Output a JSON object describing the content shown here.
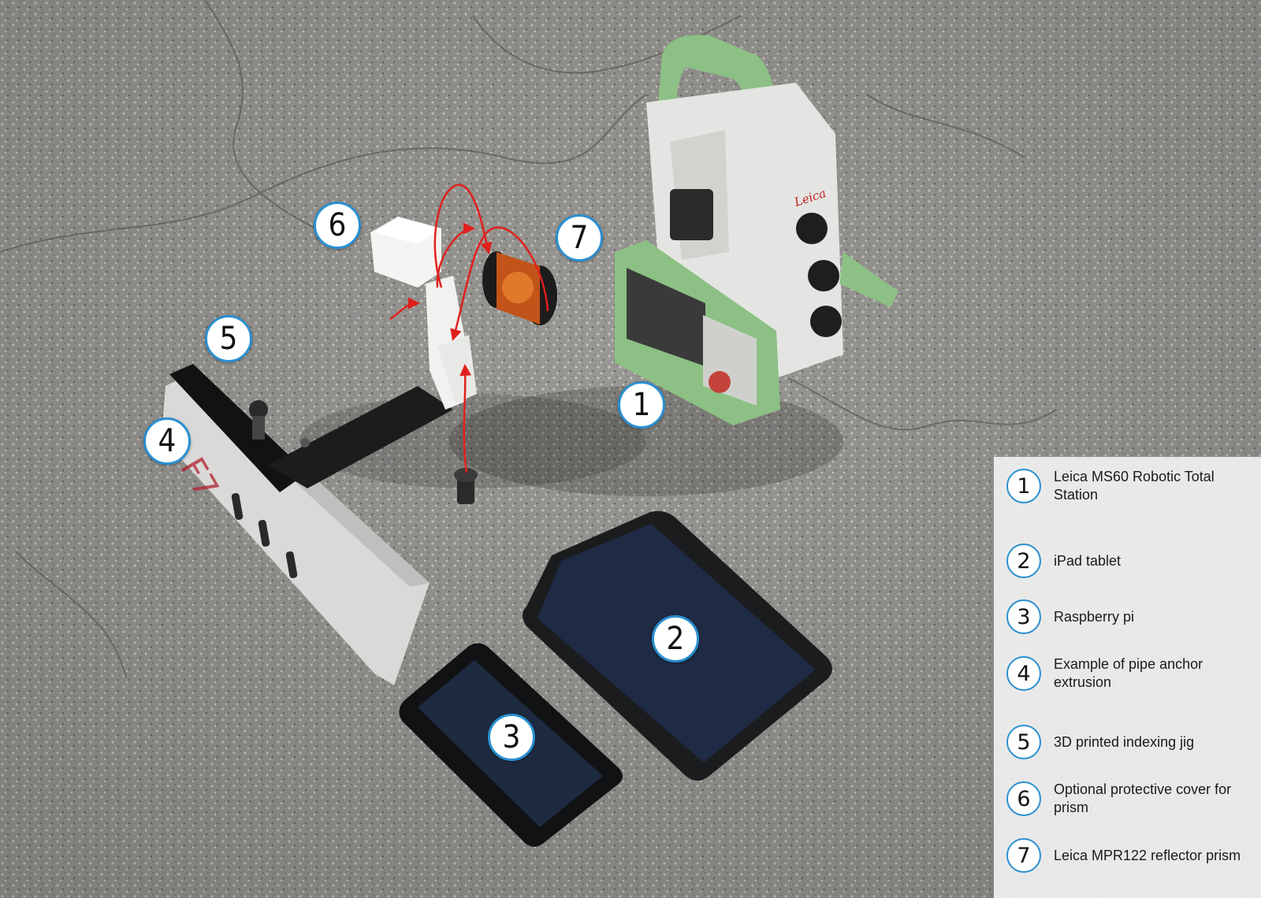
{
  "callouts": [
    "1",
    "2",
    "3",
    "4",
    "5",
    "6",
    "7"
  ],
  "legend": [
    {
      "number": "1",
      "text": "Leica MS60 Robotic Total Station"
    },
    {
      "number": "2",
      "text": "iPad tablet"
    },
    {
      "number": "3",
      "text": "Raspberry pi"
    },
    {
      "number": "4",
      "text": "Example of pipe anchor extrusion"
    },
    {
      "number": "5",
      "text": "3D printed indexing jig"
    },
    {
      "number": "6",
      "text": "Optional protective cover for prism"
    },
    {
      "number": "7",
      "text": "Leica MPR122 reflector prism"
    }
  ],
  "marking_text": "F7",
  "brand_logo": "Leica",
  "colors": {
    "callout_border": "#2a8fd0",
    "arrow": "#e0201c",
    "station_green": "#8cc084",
    "asphalt": "#9a9894"
  }
}
